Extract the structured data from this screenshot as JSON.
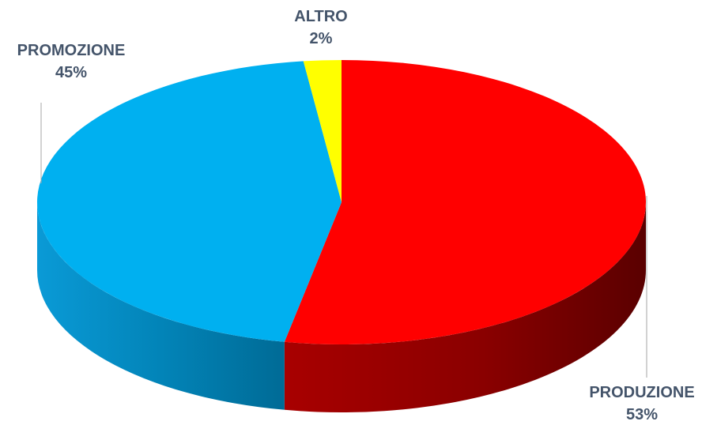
{
  "chart_data": {
    "type": "pie",
    "title": "",
    "legend": "none",
    "slices": [
      {
        "label": "PRODUZIONE",
        "value": 53,
        "value_label": "53%",
        "color": "#ff0000",
        "side_color": "#a50000"
      },
      {
        "label": "PROMOZIONE",
        "value": 45,
        "value_label": "45%",
        "color": "#00b0f0",
        "side_color": "#0089bd"
      },
      {
        "label": "ALTRO",
        "value": 2,
        "value_label": "2%",
        "color": "#ffff00",
        "side_color": "#c4c400"
      }
    ]
  }
}
